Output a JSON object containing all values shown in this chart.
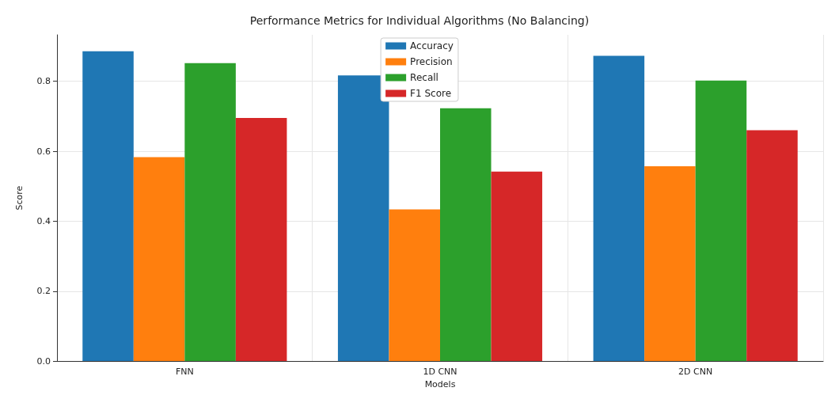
{
  "chart_data": {
    "type": "bar",
    "title": "Performance Metrics for Individual Algorithms (No Balancing)",
    "xlabel": "Models",
    "ylabel": "Score",
    "categories": [
      "FNN",
      "1D CNN",
      "2D CNN"
    ],
    "series": [
      {
        "name": "Accuracy",
        "color": "#1f77b4",
        "values": [
          0.886,
          0.817,
          0.873
        ]
      },
      {
        "name": "Precision",
        "color": "#ff7f0e",
        "values": [
          0.583,
          0.434,
          0.557
        ]
      },
      {
        "name": "Recall",
        "color": "#2ca02c",
        "values": [
          0.852,
          0.723,
          0.802
        ]
      },
      {
        "name": "F1 Score",
        "color": "#d62728",
        "values": [
          0.695,
          0.542,
          0.66
        ]
      }
    ],
    "ylim": [
      0,
      0.933
    ],
    "yticks": [
      {
        "value": 0,
        "label": "0.0"
      },
      {
        "value": 0.2,
        "label": "0.2"
      },
      {
        "value": 0.4,
        "label": "0.4"
      },
      {
        "value": 0.6,
        "label": "0.6"
      },
      {
        "value": 0.8,
        "label": "0.8"
      }
    ],
    "grid": true,
    "legend": "top"
  }
}
